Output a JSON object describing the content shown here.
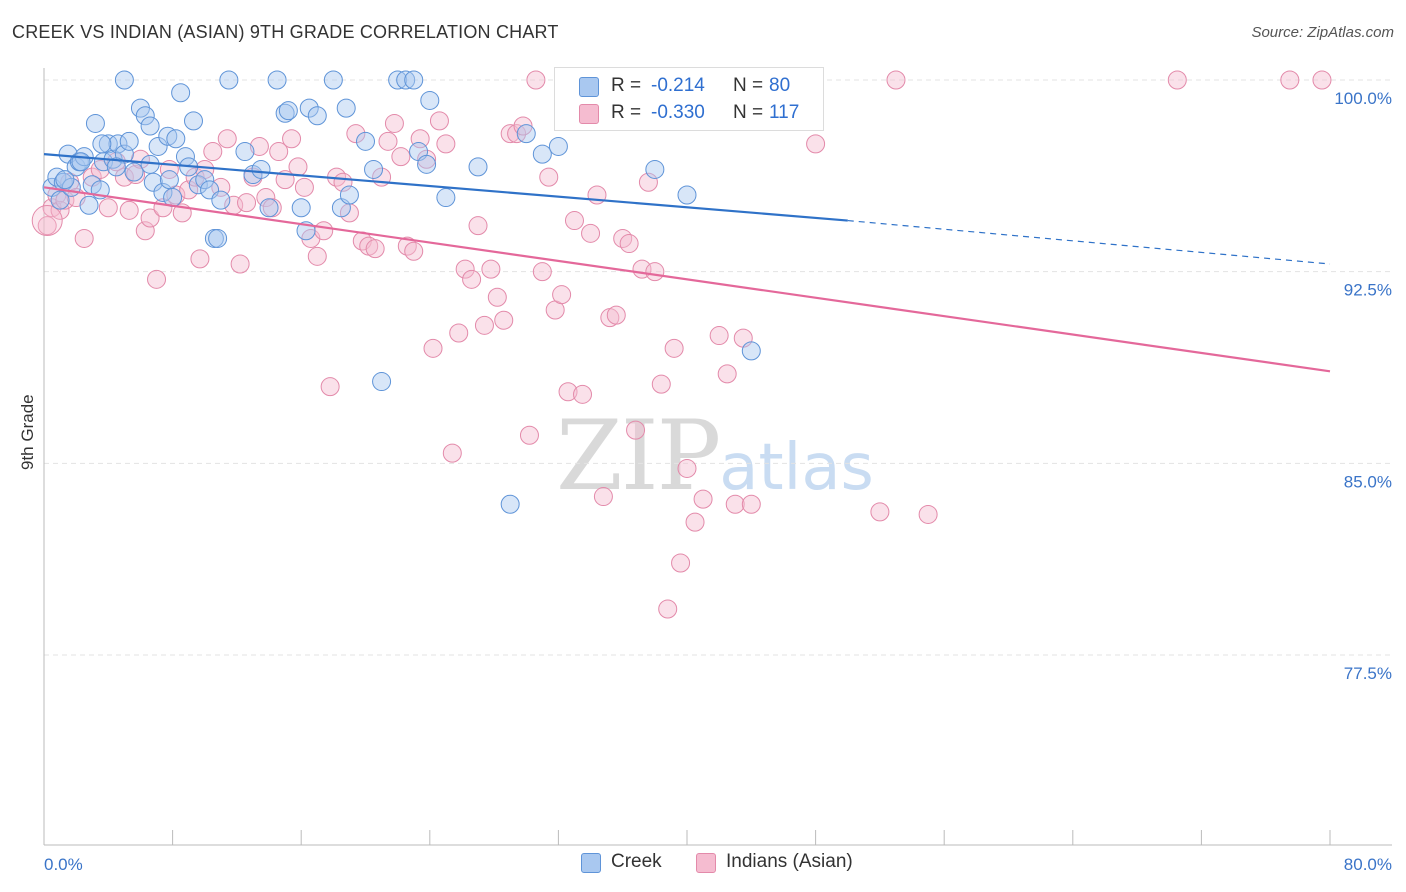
{
  "header": {
    "title": "CREEK VS INDIAN (ASIAN) 9TH GRADE CORRELATION CHART",
    "source": "Source: ZipAtlas.com"
  },
  "watermark": {
    "zip": "ZIP",
    "atlas": "atlas"
  },
  "legend_top": {
    "rows": [
      {
        "r_label": "R =",
        "r_value": "-0.214",
        "n_label": "N =",
        "n_value": "80"
      },
      {
        "r_label": "R =",
        "r_value": "-0.330",
        "n_label": "N =",
        "n_value": "117"
      }
    ]
  },
  "legend_bottom": {
    "items": [
      {
        "label": "Creek"
      },
      {
        "label": "Indians (Asian)"
      }
    ]
  },
  "colors": {
    "creek_fill": "#a9c8f0",
    "creek_stroke": "#5f94d8",
    "creek_line": "#2f72c8",
    "indian_fill": "#f5bcd0",
    "indian_stroke": "#e38aaa",
    "indian_line": "#e4689a",
    "tick_label": "#3a74c8",
    "grid": "#e3e3e3"
  },
  "chart_data": {
    "type": "scatter",
    "title": "CREEK VS INDIAN (ASIAN) 9TH GRADE CORRELATION CHART",
    "xlabel": "",
    "ylabel": "9th Grade",
    "xlim": [
      0,
      80
    ],
    "ylim": [
      69.5,
      101.5
    ],
    "x_tick_labels": [
      "0.0%",
      "80.0%"
    ],
    "y_ticks": [
      77.5,
      85.0,
      92.5,
      100.0
    ],
    "y_tick_labels": [
      "77.5%",
      "85.0%",
      "92.5%",
      "100.0%"
    ],
    "grid": true,
    "legend_position": "top-center",
    "series": [
      {
        "name": "Creek",
        "r": -0.214,
        "n": 80,
        "trend": {
          "x": [
            0,
            50
          ],
          "y": [
            97.1,
            94.5
          ],
          "dashed_to": [
            80,
            92.8
          ]
        },
        "points": [
          [
            0.5,
            95.8
          ],
          [
            0.8,
            96.2
          ],
          [
            1.0,
            95.3
          ],
          [
            1.2,
            96.0
          ],
          [
            1.5,
            97.1
          ],
          [
            1.7,
            95.8
          ],
          [
            2.0,
            96.6
          ],
          [
            2.2,
            96.8
          ],
          [
            2.5,
            97.0
          ],
          [
            2.8,
            95.1
          ],
          [
            3.0,
            95.9
          ],
          [
            3.2,
            98.3
          ],
          [
            3.5,
            95.7
          ],
          [
            3.7,
            96.8
          ],
          [
            4.0,
            97.5
          ],
          [
            4.3,
            96.9
          ],
          [
            4.6,
            97.5
          ],
          [
            5.0,
            97.1
          ],
          [
            5.3,
            97.6
          ],
          [
            5.6,
            96.4
          ],
          [
            6.0,
            98.9
          ],
          [
            6.3,
            98.6
          ],
          [
            6.6,
            98.2
          ],
          [
            6.8,
            96.0
          ],
          [
            7.1,
            97.4
          ],
          [
            7.4,
            95.6
          ],
          [
            7.7,
            97.8
          ],
          [
            8.0,
            95.4
          ],
          [
            8.2,
            97.7
          ],
          [
            8.5,
            99.5
          ],
          [
            8.8,
            97.0
          ],
          [
            9.0,
            96.6
          ],
          [
            9.3,
            98.4
          ],
          [
            9.6,
            95.9
          ],
          [
            10.0,
            96.1
          ],
          [
            10.3,
            95.7
          ],
          [
            10.6,
            93.8
          ],
          [
            11.0,
            95.3
          ],
          [
            5.0,
            100.0
          ],
          [
            11.5,
            100.0
          ],
          [
            12.5,
            97.2
          ],
          [
            13.0,
            96.3
          ],
          [
            13.5,
            96.5
          ],
          [
            14.0,
            95.0
          ],
          [
            14.5,
            100.0
          ],
          [
            15.0,
            98.7
          ],
          [
            15.2,
            98.8
          ],
          [
            16.0,
            95.0
          ],
          [
            16.3,
            94.1
          ],
          [
            16.5,
            98.9
          ],
          [
            17.0,
            98.6
          ],
          [
            18.0,
            100.0
          ],
          [
            18.5,
            95.0
          ],
          [
            18.8,
            98.9
          ],
          [
            19.0,
            95.5
          ],
          [
            20.0,
            97.6
          ],
          [
            20.5,
            96.5
          ],
          [
            21.0,
            88.2
          ],
          [
            22.0,
            100.0
          ],
          [
            22.5,
            100.0
          ],
          [
            23.0,
            100.0
          ],
          [
            23.3,
            97.2
          ],
          [
            23.8,
            96.7
          ],
          [
            24.0,
            99.2
          ],
          [
            25.0,
            95.4
          ],
          [
            27.0,
            96.6
          ],
          [
            29.0,
            83.4
          ],
          [
            30.0,
            97.9
          ],
          [
            31.0,
            97.1
          ],
          [
            32.0,
            97.4
          ],
          [
            38.0,
            96.5
          ],
          [
            40.0,
            95.5
          ],
          [
            44.0,
            89.4
          ],
          [
            10.8,
            93.8
          ],
          [
            6.6,
            96.7
          ],
          [
            4.5,
            96.6
          ],
          [
            3.6,
            97.5
          ],
          [
            1.3,
            96.1
          ],
          [
            2.3,
            96.8
          ],
          [
            7.8,
            96.1
          ]
        ]
      },
      {
        "name": "Indians (Asian)",
        "r": -0.33,
        "n": 117,
        "trend": {
          "x": [
            0,
            80
          ],
          "y": [
            95.8,
            88.6
          ]
        },
        "points": [
          [
            0.2,
            94.3
          ],
          [
            0.5,
            95.0
          ],
          [
            0.8,
            95.5
          ],
          [
            1.0,
            94.9
          ],
          [
            1.3,
            95.3
          ],
          [
            1.6,
            96.0
          ],
          [
            2.0,
            95.4
          ],
          [
            2.5,
            93.8
          ],
          [
            3.0,
            96.2
          ],
          [
            3.5,
            96.5
          ],
          [
            4.0,
            95.0
          ],
          [
            4.5,
            96.8
          ],
          [
            5.0,
            96.2
          ],
          [
            5.3,
            94.9
          ],
          [
            5.7,
            96.3
          ],
          [
            6.0,
            96.9
          ],
          [
            6.3,
            94.1
          ],
          [
            6.6,
            94.6
          ],
          [
            7.0,
            92.2
          ],
          [
            7.4,
            95.0
          ],
          [
            7.8,
            96.5
          ],
          [
            8.2,
            95.5
          ],
          [
            8.6,
            94.8
          ],
          [
            9.0,
            95.7
          ],
          [
            9.4,
            96.2
          ],
          [
            9.7,
            93.0
          ],
          [
            10.0,
            96.5
          ],
          [
            10.5,
            97.2
          ],
          [
            11.0,
            95.8
          ],
          [
            11.4,
            97.7
          ],
          [
            11.8,
            95.1
          ],
          [
            12.2,
            92.8
          ],
          [
            12.6,
            95.2
          ],
          [
            13.0,
            96.2
          ],
          [
            13.4,
            97.4
          ],
          [
            13.8,
            95.4
          ],
          [
            14.2,
            95.0
          ],
          [
            14.6,
            97.2
          ],
          [
            15.0,
            96.1
          ],
          [
            15.4,
            97.7
          ],
          [
            15.8,
            96.6
          ],
          [
            16.2,
            95.8
          ],
          [
            16.6,
            93.8
          ],
          [
            17.0,
            93.1
          ],
          [
            17.4,
            94.1
          ],
          [
            17.8,
            88.0
          ],
          [
            18.2,
            96.2
          ],
          [
            18.6,
            96.0
          ],
          [
            19.0,
            94.8
          ],
          [
            19.4,
            97.9
          ],
          [
            19.8,
            93.7
          ],
          [
            20.2,
            93.5
          ],
          [
            20.6,
            93.4
          ],
          [
            21.0,
            96.2
          ],
          [
            21.4,
            97.6
          ],
          [
            21.8,
            98.3
          ],
          [
            22.2,
            97.0
          ],
          [
            22.6,
            93.5
          ],
          [
            23.0,
            93.3
          ],
          [
            23.4,
            97.7
          ],
          [
            23.8,
            96.9
          ],
          [
            24.2,
            89.5
          ],
          [
            24.6,
            98.4
          ],
          [
            25.0,
            97.5
          ],
          [
            25.4,
            85.4
          ],
          [
            25.8,
            90.1
          ],
          [
            26.2,
            92.6
          ],
          [
            26.6,
            92.2
          ],
          [
            27.0,
            94.3
          ],
          [
            27.4,
            90.4
          ],
          [
            27.8,
            92.6
          ],
          [
            28.2,
            91.5
          ],
          [
            28.6,
            90.6
          ],
          [
            29.0,
            97.9
          ],
          [
            29.4,
            97.9
          ],
          [
            29.8,
            98.2
          ],
          [
            30.2,
            86.1
          ],
          [
            30.6,
            100.0
          ],
          [
            31.0,
            92.5
          ],
          [
            31.4,
            96.2
          ],
          [
            31.8,
            91.0
          ],
          [
            32.2,
            91.6
          ],
          [
            32.6,
            87.8
          ],
          [
            33.0,
            94.5
          ],
          [
            33.5,
            87.7
          ],
          [
            34.0,
            94.0
          ],
          [
            34.4,
            95.5
          ],
          [
            34.8,
            83.7
          ],
          [
            35.2,
            90.7
          ],
          [
            35.6,
            90.8
          ],
          [
            36.0,
            93.8
          ],
          [
            36.4,
            93.6
          ],
          [
            36.8,
            86.3
          ],
          [
            37.2,
            92.6
          ],
          [
            37.6,
            96.0
          ],
          [
            38.0,
            92.5
          ],
          [
            38.4,
            88.1
          ],
          [
            38.8,
            79.3
          ],
          [
            39.2,
            89.5
          ],
          [
            39.6,
            81.1
          ],
          [
            40.0,
            84.8
          ],
          [
            40.5,
            82.7
          ],
          [
            41.0,
            83.6
          ],
          [
            41.5,
            100.0
          ],
          [
            42.0,
            90.0
          ],
          [
            42.5,
            88.5
          ],
          [
            43.0,
            83.4
          ],
          [
            43.5,
            89.9
          ],
          [
            44.0,
            83.4
          ],
          [
            47.5,
            100.0
          ],
          [
            48.0,
            97.5
          ],
          [
            52.0,
            83.1
          ],
          [
            53.0,
            100.0
          ],
          [
            55.0,
            83.0
          ],
          [
            70.5,
            100.0
          ],
          [
            77.5,
            100.0
          ],
          [
            79.5,
            100.0
          ]
        ]
      }
    ]
  }
}
